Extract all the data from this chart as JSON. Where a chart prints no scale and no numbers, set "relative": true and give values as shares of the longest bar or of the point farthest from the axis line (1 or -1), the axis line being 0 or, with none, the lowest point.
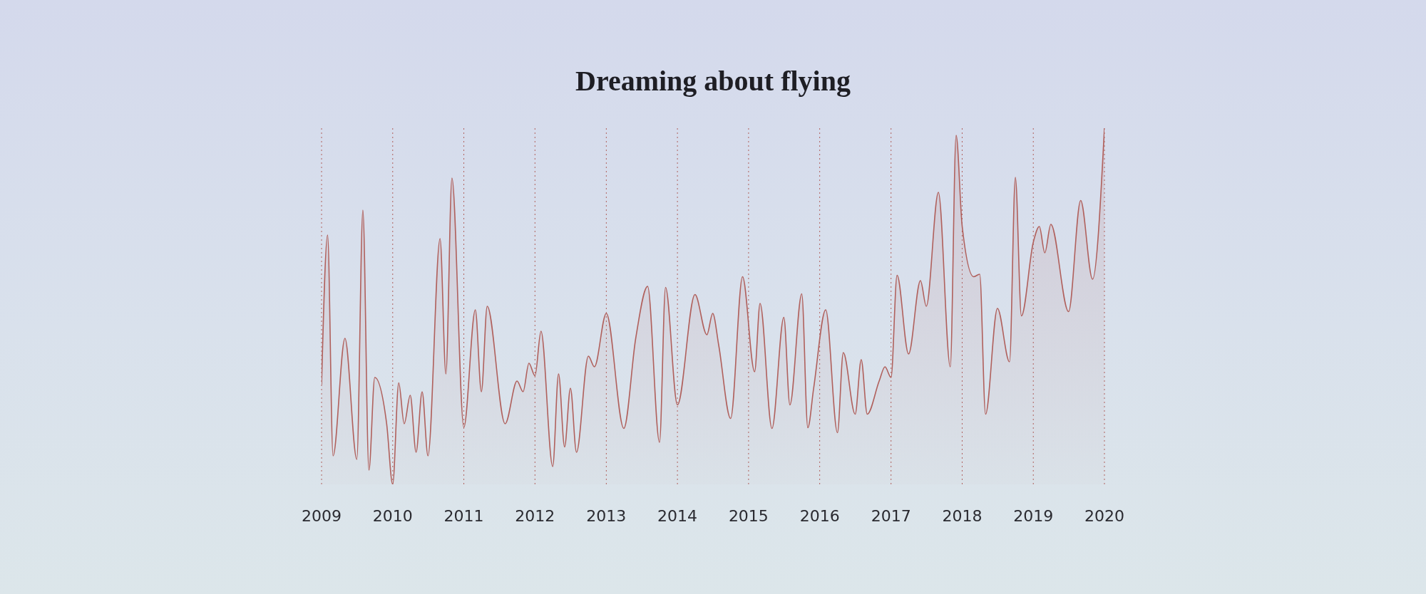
{
  "chart_data": {
    "type": "area",
    "title": "Dreaming about flying",
    "relative": true,
    "grid": "x",
    "line_style": "solid",
    "marker": "none",
    "x": [
      "2009-01",
      "2009-02",
      "2009-03",
      "2009-05",
      "2009-07",
      "2009-08",
      "2009-09",
      "2009-10",
      "2009-12",
      "2010-01",
      "2010-02",
      "2010-03",
      "2010-04",
      "2010-05",
      "2010-06",
      "2010-07",
      "2010-09",
      "2010-10",
      "2010-11",
      "2011-01",
      "2011-03",
      "2011-04",
      "2011-05",
      "2011-08",
      "2011-10",
      "2011-11",
      "2011-12",
      "2012-01",
      "2012-02",
      "2012-04",
      "2012-05",
      "2012-06",
      "2012-07",
      "2012-08",
      "2012-10",
      "2012-11",
      "2013-01",
      "2013-04",
      "2013-06",
      "2013-08",
      "2013-10",
      "2013-11",
      "2014-01",
      "2014-04",
      "2014-06",
      "2014-07",
      "2014-08",
      "2014-10",
      "2014-12",
      "2015-02",
      "2015-03",
      "2015-05",
      "2015-07",
      "2015-08",
      "2015-10",
      "2015-11",
      "2015-12",
      "2016-02",
      "2016-04",
      "2016-05",
      "2016-07",
      "2016-08",
      "2016-09",
      "2016-11",
      "2016-12",
      "2017-01",
      "2017-02",
      "2017-04",
      "2017-06",
      "2017-07",
      "2017-09",
      "2017-11",
      "2017-12",
      "2018-01",
      "2018-03",
      "2018-04",
      "2018-05",
      "2018-07",
      "2018-09",
      "2018-10",
      "2018-11",
      "2019-01",
      "2019-02",
      "2019-03",
      "2019-04",
      "2019-07",
      "2019-09",
      "2019-11",
      "2020-01"
    ],
    "series": [
      {
        "color": "#b0605c",
        "values": [
          0.28,
          0.7,
          0.08,
          0.41,
          0.07,
          0.77,
          0.04,
          0.3,
          0.17,
          0,
          0.285,
          0.17,
          0.25,
          0.09,
          0.26,
          0.08,
          0.69,
          0.31,
          0.86,
          0.16,
          0.49,
          0.26,
          0.5,
          0.17,
          0.29,
          0.26,
          0.34,
          0.305,
          0.43,
          0.05,
          0.31,
          0.105,
          0.27,
          0.09,
          0.36,
          0.33,
          0.48,
          0.157,
          0.41,
          0.556,
          0.118,
          0.553,
          0.223,
          0.533,
          0.42,
          0.48,
          0.39,
          0.185,
          0.583,
          0.316,
          0.508,
          0.157,
          0.469,
          0.223,
          0.535,
          0.159,
          0.27,
          0.49,
          0.145,
          0.37,
          0.197,
          0.35,
          0.197,
          0.29,
          0.33,
          0.3,
          0.587,
          0.366,
          0.572,
          0.5,
          0.82,
          0.33,
          0.98,
          0.725,
          0.583,
          0.59,
          0.197,
          0.494,
          0.344,
          0.862,
          0.473,
          0.68,
          0.724,
          0.65,
          0.73,
          0.485,
          0.797,
          0.576,
          1
        ]
      }
    ],
    "xlim": [
      "2009-01",
      "2020-01"
    ],
    "xticks": [
      "2009",
      "2010",
      "2011",
      "2012",
      "2013",
      "2014",
      "2015",
      "2016",
      "2017",
      "2018",
      "2019",
      "2020"
    ]
  }
}
